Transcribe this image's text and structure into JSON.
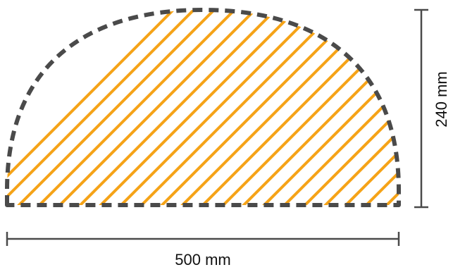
{
  "diagram": {
    "shape": "semi-ellipse segment",
    "fill_pattern": "diagonal-hatch",
    "colors": {
      "hatch": "#F5A318",
      "outline": "#4A4A4A",
      "dimension_line": "#4A4A4A",
      "text": "#111111"
    },
    "dimensions": {
      "width": {
        "label": "500 mm"
      },
      "height": {
        "label": "240 mm"
      }
    }
  }
}
